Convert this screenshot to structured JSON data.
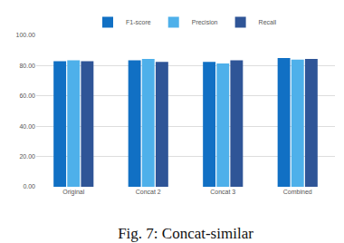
{
  "chart_data": {
    "type": "bar",
    "title": "Fig. 7: Concat-similar",
    "categories": [
      "Original",
      "Concat 2",
      "Concat 3",
      "Combined"
    ],
    "series": [
      {
        "name": "F1-score",
        "color": "#1170c4",
        "values": [
          83,
          83.5,
          82.5,
          85
        ]
      },
      {
        "name": "Precision",
        "color": "#4eb0ea",
        "values": [
          83.5,
          84.5,
          81.5,
          84
        ]
      },
      {
        "name": "Recall",
        "color": "#2f5597",
        "values": [
          83,
          82.5,
          83.5,
          84.5
        ]
      }
    ],
    "ylim": [
      0,
      100
    ],
    "yticks": [
      {
        "value": 0,
        "label": "0.00"
      },
      {
        "value": 20,
        "label": "20.00"
      },
      {
        "value": 40,
        "label": "40.00"
      },
      {
        "value": 60,
        "label": "60.00"
      },
      {
        "value": 80,
        "label": "80.00"
      },
      {
        "value": 100,
        "label": "100.00"
      }
    ],
    "grid": true,
    "legend": "top"
  }
}
